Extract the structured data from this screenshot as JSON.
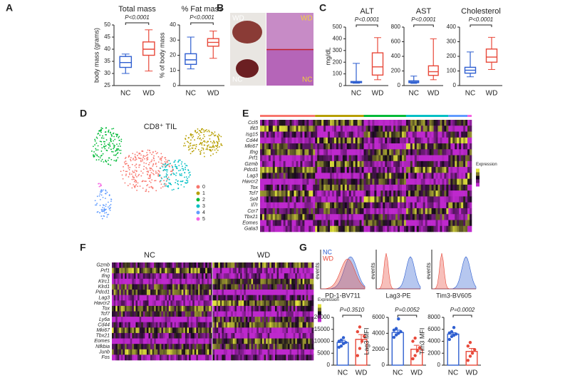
{
  "panel_labels": [
    "A",
    "B",
    "C",
    "D",
    "E",
    "F",
    "G"
  ],
  "photos": {
    "labels": [
      "WD",
      "NC",
      "WD",
      "NC"
    ]
  },
  "chart_data": [
    {
      "type": "box",
      "title": "Total mass",
      "ylabel": "body mass (grams)",
      "annotation": "P<0.0001",
      "categories": [
        "NC",
        "WD"
      ],
      "colors": [
        "#2f5fd0",
        "#e8493a"
      ],
      "boxes": [
        {
          "min": 30,
          "q1": 32.5,
          "median": 34.5,
          "q3": 37,
          "max": 38
        },
        {
          "min": 31,
          "q1": 37.5,
          "median": 40,
          "q3": 43,
          "max": 48
        }
      ],
      "ylim": [
        25,
        50
      ],
      "yticks": [
        25,
        30,
        35,
        40,
        45,
        50
      ]
    },
    {
      "type": "box",
      "title": "% Fat mass",
      "ylabel": "% of body mass",
      "annotation": "P<0.0001",
      "categories": [
        "NC",
        "WD"
      ],
      "colors": [
        "#2f5fd0",
        "#e8493a"
      ],
      "boxes": [
        {
          "min": 11,
          "q1": 14,
          "median": 17,
          "q3": 21,
          "max": 32
        },
        {
          "min": 18,
          "q1": 26,
          "median": 28.5,
          "q3": 31,
          "max": 36
        }
      ],
      "ylim": [
        0,
        40
      ],
      "yticks": [
        0,
        10,
        20,
        30,
        40
      ]
    },
    {
      "type": "box",
      "title": "ALT",
      "ylabel": "mg/dL",
      "annotation": "P<0.0001",
      "categories": [
        "NC",
        "WD"
      ],
      "colors": [
        "#2f5fd0",
        "#e8493a"
      ],
      "boxes": [
        {
          "min": 20,
          "q1": 25,
          "median": 30,
          "q3": 35,
          "max": 190
        },
        {
          "min": 50,
          "q1": 90,
          "median": 160,
          "q3": 280,
          "max": 410
        }
      ],
      "ylim": [
        0,
        500
      ],
      "yticks": [
        0,
        100,
        200,
        300,
        400,
        500
      ]
    },
    {
      "type": "box",
      "title": "AST",
      "annotation": "P<0.0001",
      "categories": [
        "NC",
        "WD"
      ],
      "colors": [
        "#2f5fd0",
        "#e8493a"
      ],
      "boxes": [
        {
          "min": 30,
          "q1": 40,
          "median": 50,
          "q3": 65,
          "max": 130
        },
        {
          "min": 80,
          "q1": 140,
          "median": 190,
          "q3": 270,
          "max": 640
        }
      ],
      "ylim": [
        0,
        800
      ],
      "yticks": [
        0,
        200,
        400,
        600,
        800
      ]
    },
    {
      "type": "box",
      "title": "Cholesterol",
      "annotation": "P<0.0001",
      "categories": [
        "NC",
        "WD"
      ],
      "colors": [
        "#2f5fd0",
        "#e8493a"
      ],
      "boxes": [
        {
          "min": 60,
          "q1": 85,
          "median": 105,
          "q3": 125,
          "max": 230
        },
        {
          "min": 110,
          "q1": 160,
          "median": 195,
          "q3": 250,
          "max": 330
        }
      ],
      "ylim": [
        0,
        400
      ],
      "yticks": [
        0,
        100,
        200,
        300,
        400
      ]
    },
    {
      "type": "bar",
      "ylabel": "PD-1 MFI",
      "annotation": "P=0.3510",
      "categories": [
        "NC",
        "WD"
      ],
      "colors": [
        "#2f5fd0",
        "#e8493a"
      ],
      "values": [
        9500,
        10800
      ],
      "errors": [
        900,
        2000
      ],
      "points": [
        [
          7500,
          8000,
          9000,
          9500,
          10000,
          10500,
          11500
        ],
        [
          4000,
          7000,
          10000,
          12000,
          14000,
          16000
        ]
      ],
      "ylim": [
        0,
        20000
      ],
      "yticks": [
        0,
        5000,
        10000,
        15000,
        20000
      ]
    },
    {
      "type": "bar",
      "ylabel": "Lag3 MFI",
      "annotation": "P=0.0052",
      "categories": [
        "NC",
        "WD"
      ],
      "colors": [
        "#2f5fd0",
        "#e8493a"
      ],
      "values": [
        4100,
        2000
      ],
      "errors": [
        300,
        500
      ],
      "points": [
        [
          3500,
          3800,
          4000,
          4200,
          4400,
          4600,
          5800
        ],
        [
          800,
          1200,
          1800,
          2200,
          3000,
          3400
        ]
      ],
      "ylim": [
        0,
        6000
      ],
      "yticks": [
        0,
        2000,
        4000,
        6000
      ]
    },
    {
      "type": "bar",
      "ylabel": "Tim3 MFI",
      "annotation": "P=0.0002",
      "categories": [
        "NC",
        "WD"
      ],
      "colors": [
        "#2f5fd0",
        "#e8493a"
      ],
      "values": [
        5200,
        2300
      ],
      "errors": [
        250,
        500
      ],
      "points": [
        [
          4300,
          4800,
          5000,
          5200,
          5400,
          5600,
          6300
        ],
        [
          800,
          1500,
          2000,
          2600,
          3200,
          3800
        ]
      ],
      "ylim": [
        0,
        8000
      ],
      "yticks": [
        0,
        2000,
        4000,
        6000,
        8000
      ]
    }
  ],
  "umap": {
    "title": "CD8⁺ TIL",
    "clusters": [
      {
        "name": "0",
        "color": "#f8766d"
      },
      {
        "name": "1",
        "color": "#b79f00"
      },
      {
        "name": "2",
        "color": "#00ba38"
      },
      {
        "name": "3",
        "color": "#00bfc4"
      },
      {
        "name": "4",
        "color": "#619cff"
      },
      {
        "name": "5",
        "color": "#f564e3"
      }
    ]
  },
  "heatmap_e": {
    "legend_title": "Expression",
    "genes": [
      "Ccl5",
      "Ifit3",
      "Isg15",
      "Cd44",
      "Mki67",
      "Ifng",
      "Prf1",
      "Gzmb",
      "Pdcd1",
      "Lag3",
      "Havcr2",
      "Tox",
      "Tcf7",
      "Sell",
      "Il7r",
      "Ccr7",
      "Tbx21",
      "Eomes",
      "Gata3"
    ]
  },
  "heatmap_f": {
    "legend_title": "Expression",
    "headers": [
      "NC",
      "WD"
    ],
    "genes": [
      "Gzmb",
      "Prf1",
      "Ifng",
      "Klrc1",
      "Klrd1",
      "Pdcd1",
      "Lag3",
      "Havcr2",
      "Tox",
      "Tcf7",
      "Ly6a",
      "Cd44",
      "Mki67",
      "Tbx21",
      "Eomes",
      "Nfkbia",
      "Junb",
      "Fos"
    ]
  },
  "flow": {
    "ylabel": "events",
    "legend": [
      {
        "name": "NC",
        "color": "#2f5fd0"
      },
      {
        "name": "WD",
        "color": "#e8493a"
      }
    ],
    "markers": [
      "PD-1-BV711",
      "Lag3-PE",
      "Tim3-BV605"
    ]
  }
}
